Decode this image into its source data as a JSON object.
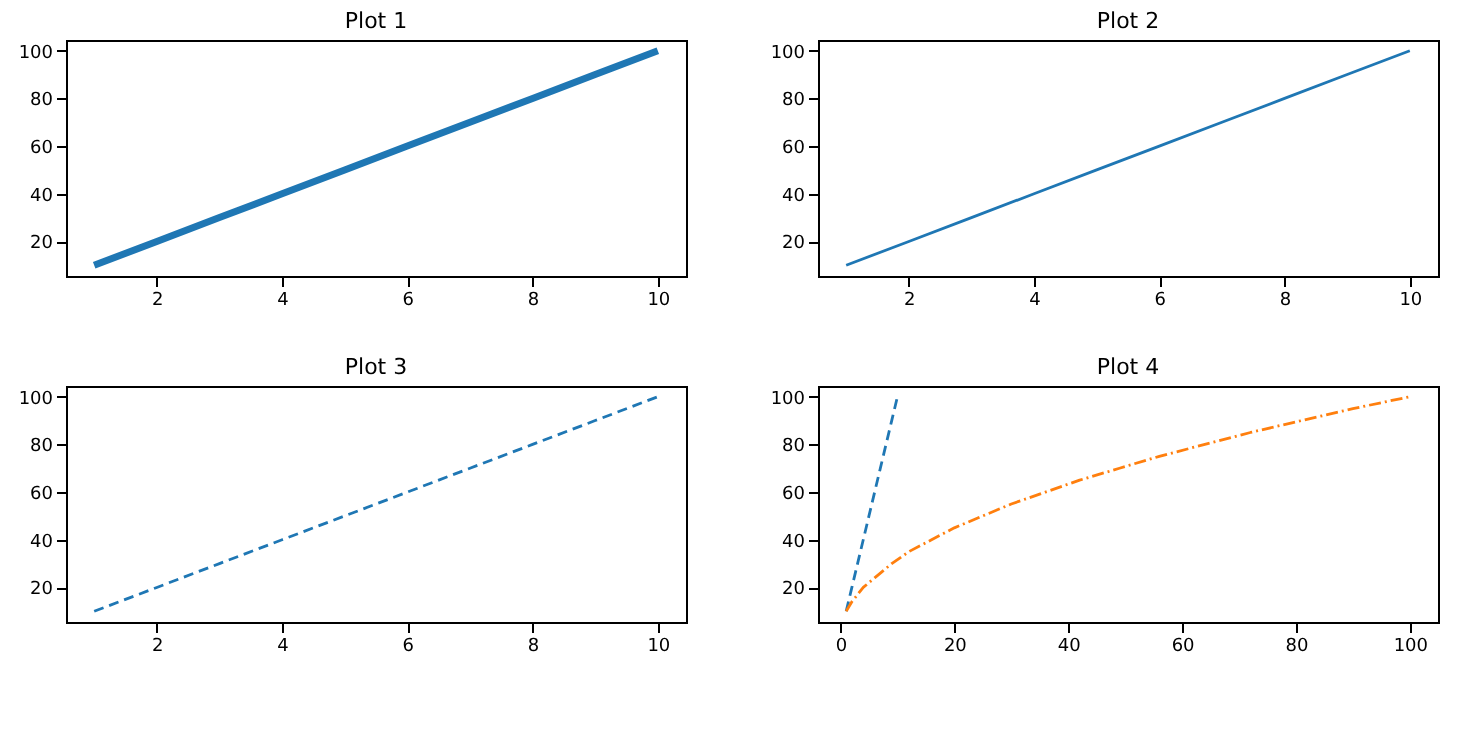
{
  "chart_data": [
    {
      "type": "line",
      "title": "Plot 1",
      "line_style": "solid",
      "series": [
        {
          "color": "#1f77b4",
          "x": [
            1,
            2,
            3,
            4,
            5,
            6,
            7,
            8,
            9,
            10
          ],
          "values": [
            10,
            20,
            30,
            40,
            50,
            60,
            70,
            80,
            90,
            100
          ]
        }
      ],
      "xlim": [
        0.55,
        10.45
      ],
      "ylim": [
        5.5,
        104.5
      ],
      "xticks": [
        2,
        4,
        6,
        8,
        10
      ],
      "yticks": [
        20,
        40,
        60,
        80,
        100
      ],
      "grid": false
    },
    {
      "type": "line",
      "title": "Plot 2",
      "line_style": "solid",
      "series": [
        {
          "color": "#1f77b4",
          "x": [
            1,
            2,
            3,
            4,
            5,
            6,
            7,
            8,
            9,
            10
          ],
          "values": [
            10,
            20,
            30,
            40,
            50,
            60,
            70,
            80,
            90,
            100
          ]
        }
      ],
      "xlim": [
        0.55,
        10.45
      ],
      "ylim": [
        5.5,
        104.5
      ],
      "xticks": [
        2,
        4,
        6,
        8,
        10
      ],
      "yticks": [
        20,
        40,
        60,
        80,
        100
      ],
      "grid": false
    },
    {
      "type": "line",
      "title": "Plot 3",
      "line_style": "dashed",
      "series": [
        {
          "color": "#1f77b4",
          "x": [
            1,
            2,
            3,
            4,
            5,
            6,
            7,
            8,
            9,
            10
          ],
          "values": [
            10,
            20,
            30,
            40,
            50,
            60,
            70,
            80,
            90,
            100
          ]
        }
      ],
      "xlim": [
        0.55,
        10.45
      ],
      "ylim": [
        5.5,
        104.5
      ],
      "xticks": [
        2,
        4,
        6,
        8,
        10
      ],
      "yticks": [
        20,
        40,
        60,
        80,
        100
      ],
      "grid": false
    },
    {
      "type": "line",
      "title": "Plot 4",
      "series": [
        {
          "color": "#1f77b4",
          "line_style": "dashed",
          "x": [
            1,
            2,
            3,
            4,
            5,
            6,
            7,
            8,
            9,
            10
          ],
          "values": [
            10,
            20,
            30,
            40,
            50,
            60,
            70,
            80,
            90,
            100
          ]
        },
        {
          "color": "#ff7f0e",
          "line_style": "dashdot",
          "x": [
            1,
            2,
            4,
            6,
            9,
            12,
            16,
            20,
            25,
            30,
            36,
            42,
            49,
            56,
            64,
            72,
            81,
            90,
            100
          ],
          "values": [
            10,
            14,
            20,
            24,
            30,
            35,
            40,
            45,
            50,
            55,
            60,
            65,
            70,
            75,
            80,
            85,
            90,
            95,
            100
          ]
        }
      ],
      "xlim": [
        -3.95,
        104.95
      ],
      "ylim": [
        5.5,
        104.5
      ],
      "xticks": [
        0,
        20,
        40,
        60,
        80,
        100
      ],
      "yticks": [
        20,
        40,
        60,
        80,
        100
      ],
      "grid": false
    }
  ]
}
